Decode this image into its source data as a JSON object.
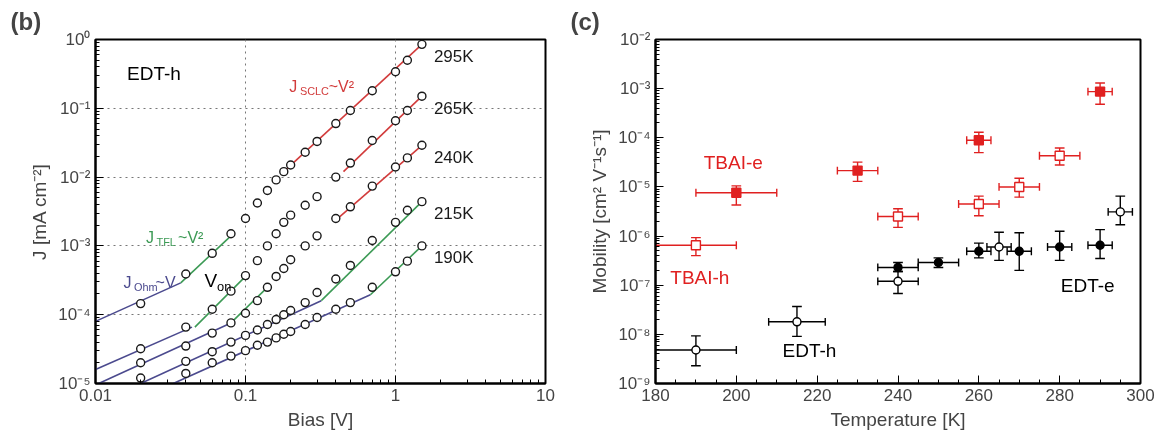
{
  "chart_data": [
    {
      "type": "scatter",
      "title": "(b)",
      "xlabel": "Bias [V]",
      "ylabel": "J [mA cm⁻²]",
      "log": "xy",
      "grid": true,
      "xlim": [
        0.01,
        10
      ],
      "ylim": [
        1e-05,
        1
      ],
      "xticks": [
        0.01,
        0.1,
        1,
        10
      ],
      "yticks": [
        {
          "value": 1e-05,
          "label": "10⁻⁵"
        },
        {
          "value": 0.0001,
          "label": "10⁻⁴"
        },
        {
          "value": 0.001,
          "label": "10⁻³"
        },
        {
          "value": 0.01,
          "label": "10⁻²"
        },
        {
          "value": 0.1,
          "label": "10⁻¹"
        },
        {
          "value": 1,
          "label": "10⁰"
        }
      ],
      "annotations": [
        "EDT-h",
        "V$_{on}$"
      ],
      "series": [
        {
          "type": "line",
          "name": "J$_{Ohm}$~V",
          "color": "#4b4a8e",
          "x": [
            0.01,
            0.037
          ],
          "values": [
            8e-05,
            0.00029
          ]
        },
        {
          "type": "line",
          "color": "#4b4a8e",
          "x": [
            0.01,
            0.044
          ],
          "values": [
            1.6e-05,
            6.6e-05
          ]
        },
        {
          "type": "line",
          "color": "#4b4a8e",
          "x": [
            0.0105,
            0.08
          ],
          "values": [
            1e-05,
            7.6e-05
          ]
        },
        {
          "type": "line",
          "color": "#4b4a8e",
          "x": [
            0.02,
            0.32
          ],
          "values": [
            1e-05,
            0.00016
          ]
        },
        {
          "type": "line",
          "color": "#4b4a8e",
          "x": [
            0.033,
            0.68
          ],
          "values": [
            1e-05,
            0.000195
          ]
        },
        {
          "type": "line",
          "name": "J$_{TFL}$~V²",
          "color": "#3c9a55",
          "x": [
            0.037,
            0.08
          ],
          "values": [
            0.00029,
            0.0014
          ]
        },
        {
          "type": "line",
          "color": "#3c9a55",
          "x": [
            0.046,
            0.1
          ],
          "values": [
            6.6e-05,
            0.00036
          ]
        },
        {
          "type": "line",
          "color": "#3c9a55",
          "x": [
            0.08,
            0.14
          ],
          "values": [
            7.6e-05,
            0.00025
          ]
        },
        {
          "type": "line",
          "color": "#3c9a55",
          "x": [
            0.32,
            1.5
          ],
          "values": [
            0.00016,
            0.0044
          ]
        },
        {
          "type": "line",
          "color": "#3c9a55",
          "x": [
            0.68,
            1.5
          ],
          "values": [
            0.000195,
            0.001
          ]
        },
        {
          "type": "line",
          "name": "J$_{SCLC}$~V²",
          "color": "#d23c3c",
          "x": [
            0.18,
            1.5
          ],
          "values": [
            0.012,
            0.85
          ]
        },
        {
          "type": "line",
          "color": "#d23c3c",
          "x": [
            0.45,
            1.5
          ],
          "values": [
            0.012,
            0.15
          ]
        },
        {
          "type": "line",
          "color": "#d23c3c",
          "x": [
            0.42,
            1.5
          ],
          "values": [
            0.0026,
            0.029
          ]
        },
        {
          "name": "295K",
          "marker": "circle",
          "color": "#1a1a1a",
          "x": [
            0.02,
            0.04,
            0.06,
            0.08,
            0.1,
            0.12,
            0.14,
            0.16,
            0.18,
            0.2,
            0.25,
            0.3,
            0.4,
            0.5,
            0.7,
            1.0,
            1.2,
            1.5
          ],
          "values": [
            0.000145,
            0.00039,
            0.00078,
            0.0015,
            0.0025,
            0.0042,
            0.0064,
            0.0091,
            0.012,
            0.015,
            0.023,
            0.033,
            0.06,
            0.093,
            0.18,
            0.34,
            0.5,
            0.85
          ]
        },
        {
          "name": "265K",
          "marker": "circle",
          "color": "#1a1a1a",
          "x": [
            0.02,
            0.04,
            0.06,
            0.08,
            0.1,
            0.12,
            0.14,
            0.16,
            0.18,
            0.2,
            0.25,
            0.3,
            0.4,
            0.5,
            0.7,
            1.0,
            1.2,
            1.5
          ],
          "values": [
            3.2e-05,
            6.6e-05,
            0.00012,
            0.00022,
            0.00037,
            0.00061,
            0.001,
            0.0015,
            0.0022,
            0.0028,
            0.0039,
            0.0052,
            0.01,
            0.016,
            0.034,
            0.066,
            0.093,
            0.15
          ]
        },
        {
          "name": "240K",
          "marker": "circle",
          "color": "#1a1a1a",
          "x": [
            0.02,
            0.04,
            0.06,
            0.08,
            0.1,
            0.12,
            0.14,
            0.16,
            0.18,
            0.2,
            0.25,
            0.3,
            0.4,
            0.5,
            0.7,
            1.0,
            1.2,
            1.5
          ],
          "values": [
            2e-05,
            3.5e-05,
            5.4e-05,
            7.6e-05,
            0.000105,
            0.00016,
            0.00025,
            0.00036,
            0.00047,
            0.00063,
            0.001,
            0.0014,
            0.0025,
            0.0037,
            0.0074,
            0.014,
            0.019,
            0.029
          ]
        },
        {
          "name": "215K",
          "marker": "circle",
          "color": "#1a1a1a",
          "x": [
            0.02,
            0.04,
            0.06,
            0.08,
            0.1,
            0.12,
            0.14,
            0.16,
            0.18,
            0.2,
            0.25,
            0.3,
            0.4,
            0.5,
            0.7,
            1.0,
            1.2,
            1.5
          ],
          "values": [
            1.2e-05,
            2.1e-05,
            2.9e-05,
            4e-05,
            5e-05,
            6e-05,
            7.2e-05,
            8.5e-05,
            0.0001,
            0.000115,
            0.00015,
            0.00021,
            0.00033,
            0.00052,
            0.0012,
            0.0022,
            0.0033,
            0.0044
          ]
        },
        {
          "name": "190K",
          "marker": "circle",
          "color": "#1a1a1a",
          "x": [
            0.04,
            0.06,
            0.08,
            0.1,
            0.12,
            0.14,
            0.16,
            0.18,
            0.2,
            0.25,
            0.3,
            0.4,
            0.5,
            0.7,
            1.0,
            1.2,
            1.5
          ],
          "values": [
            1.4e-05,
            2e-05,
            2.5e-05,
            3e-05,
            3.6e-05,
            4e-05,
            4.6e-05,
            5.2e-05,
            5.7e-05,
            7.2e-05,
            9.1e-05,
            0.00012,
            0.00015,
            0.00025,
            0.00042,
            0.0006,
            0.001
          ]
        }
      ]
    },
    {
      "type": "scatter",
      "title": "(c)",
      "xlabel": "Temperature [K]",
      "ylabel": "Mobility [cm² V⁻¹s⁻¹]",
      "log": "y",
      "xlim": [
        180,
        300
      ],
      "ylim": [
        1e-09,
        0.01
      ],
      "xticks": [
        180,
        200,
        220,
        240,
        260,
        280,
        300
      ],
      "yticks": [
        {
          "value": 1e-09,
          "label": "10⁻⁹"
        },
        {
          "value": 1e-08,
          "label": "10⁻⁸"
        },
        {
          "value": 1e-07,
          "label": "10⁻⁷"
        },
        {
          "value": 1e-06,
          "label": "10⁻⁶"
        },
        {
          "value": 1e-05,
          "label": "10⁻⁵"
        },
        {
          "value": 0.0001,
          "label": "10⁻⁴"
        },
        {
          "value": 0.001,
          "label": "10⁻³"
        },
        {
          "value": 0.01,
          "label": "10⁻²"
        }
      ],
      "series": [
        {
          "name": "TBAI-e",
          "marker": "square",
          "color": "#e02020",
          "x": [
            200,
            230,
            260,
            290
          ],
          "values": [
            7.6e-06,
            2.15e-05,
            8.9e-05,
            0.00087
          ],
          "errors": [
            [
              4.3e-06,
              1.05e-05
            ],
            [
              1.3e-05,
              3.2e-05
            ],
            [
              5e-05,
              0.00013
            ],
            [
              0.00048,
              0.0013
            ]
          ],
          "xerrors": [
            10,
            5,
            3,
            3
          ]
        },
        {
          "name": "TBAI-h",
          "marker": "square",
          "color": "#e02020",
          "x": [
            190,
            240,
            260,
            270,
            280
          ],
          "values": [
            6.5e-07,
            2.5e-06,
            4.5e-06,
            1e-05,
            4.3e-05
          ],
          "errors": [
            [
              4e-07,
              9.3e-07
            ],
            [
              1.5e-06,
              3.6e-06
            ],
            [
              2.6e-06,
              6.5e-06
            ],
            [
              6.2e-06,
              1.5e-05
            ],
            [
              2.8e-05,
              6.2e-05
            ]
          ],
          "xerrors": [
            10,
            5,
            5,
            5,
            5
          ]
        },
        {
          "name": "EDT-e",
          "marker": "circle",
          "color": "#000000",
          "x": [
            240,
            250,
            260,
            270,
            280,
            290
          ],
          "values": [
            2.3e-07,
            2.9e-07,
            4.9e-07,
            4.9e-07,
            6e-07,
            6.5e-07
          ],
          "errors": [
            [
              1.9e-07,
              2.9e-07
            ],
            [
              2.3e-07,
              3.6e-07
            ],
            [
              3.6e-07,
              7.2e-07
            ],
            [
              2e-07,
              1.17e-06
            ],
            [
              3.2e-07,
              1.25e-06
            ],
            [
              3.5e-07,
              1.35e-06
            ]
          ],
          "xerrors": [
            5,
            5,
            3,
            3,
            3,
            3
          ]
        },
        {
          "name": "EDT-h",
          "marker": "circle",
          "color": "#000000",
          "x": [
            190,
            215,
            240,
            265,
            295
          ],
          "values": [
            4.8e-09,
            1.8e-08,
            1.2e-07,
            6e-07,
            3.1e-06
          ],
          "errors": [
            [
              2.3e-09,
              9.3e-09
            ],
            [
              9.1e-09,
              3.7e-08
            ],
            [
              6.8e-08,
              1.9e-07
            ],
            [
              3.2e-07,
              1.2e-06
            ],
            [
              1.7e-06,
              6.5e-06
            ]
          ],
          "xerrors": [
            10,
            7,
            5,
            3,
            3
          ]
        }
      ]
    }
  ]
}
